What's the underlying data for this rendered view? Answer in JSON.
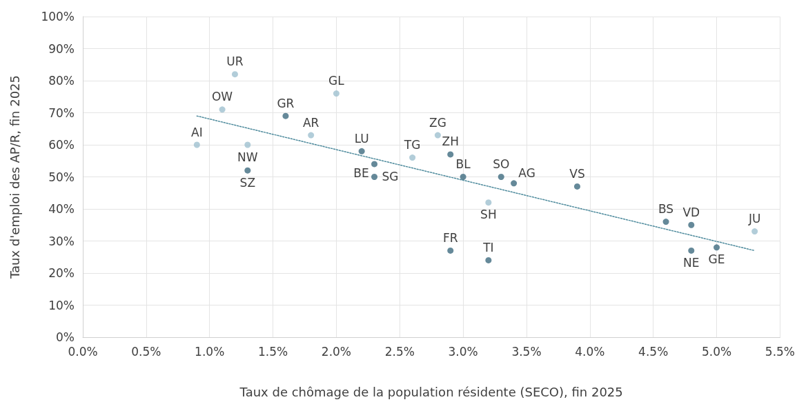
{
  "chart_data": {
    "type": "scatter",
    "xlabel": "Taux de chômage de la population résidente (SECO), fin 2025",
    "ylabel": "Taux d'emploi des AP/R, fin 2025",
    "xlim": [
      0,
      5.5
    ],
    "ylim": [
      0,
      100
    ],
    "xticks": [
      {
        "value": 0,
        "label": "0.0%"
      },
      {
        "value": 0.5,
        "label": "0.5%"
      },
      {
        "value": 1,
        "label": "1.0%"
      },
      {
        "value": 1.5,
        "label": "1.5%"
      },
      {
        "value": 2,
        "label": "2.0%"
      },
      {
        "value": 2.5,
        "label": "2.5%"
      },
      {
        "value": 3,
        "label": "3.0%"
      },
      {
        "value": 3.5,
        "label": "3.5%"
      },
      {
        "value": 4,
        "label": "4.0%"
      },
      {
        "value": 4.5,
        "label": "4.5%"
      },
      {
        "value": 5,
        "label": "5.0%"
      },
      {
        "value": 5.5,
        "label": "5.5%"
      }
    ],
    "yticks": [
      {
        "value": 0,
        "label": "0%"
      },
      {
        "value": 10,
        "label": "10%"
      },
      {
        "value": 20,
        "label": "20%"
      },
      {
        "value": 30,
        "label": "30%"
      },
      {
        "value": 40,
        "label": "40%"
      },
      {
        "value": 50,
        "label": "50%"
      },
      {
        "value": 60,
        "label": "60%"
      },
      {
        "value": 70,
        "label": "70%"
      },
      {
        "value": 80,
        "label": "80%"
      },
      {
        "value": 90,
        "label": "90%"
      },
      {
        "value": 100,
        "label": "100%"
      }
    ],
    "grid": true,
    "marker": "circle",
    "series": [
      {
        "x": [
          0.9,
          1.1,
          1.2,
          1.3,
          1.3,
          1.6,
          1.8,
          2.0,
          2.2,
          2.3,
          2.3,
          2.6,
          2.8,
          2.9,
          2.9,
          3.0,
          3.2,
          3.2,
          3.3,
          3.4,
          3.9,
          4.6,
          4.8,
          4.8,
          5.0,
          5.3
        ],
        "values": [
          60,
          71,
          82,
          60,
          52,
          69,
          63,
          76,
          58,
          54,
          50,
          56,
          63,
          57,
          27,
          50,
          42,
          24,
          50,
          48,
          47,
          36,
          35,
          27,
          28,
          33
        ],
        "colors": [
          "#9fc1cf",
          "#9fc1cf",
          "#9fc1cf",
          "#9fc1cf",
          "#3f6b80",
          "#3f6b80",
          "#9fc1cf",
          "#9fc1cf",
          "#3f6b80",
          "#3f6b80",
          "#3f6b80",
          "#9fc1cf",
          "#9fc1cf",
          "#3f6b80",
          "#3f6b80",
          "#3f6b80",
          "#9fc1cf",
          "#3f6b80",
          "#3f6b80",
          "#3f6b80",
          "#3f6b80",
          "#3f6b80",
          "#3f6b80",
          "#3f6b80",
          "#3f6b80",
          "#9fc1cf"
        ]
      },
      {
        "type": "line",
        "x": [
          0.9,
          5.3
        ],
        "values": [
          69,
          27
        ],
        "color": "#4d8a9c",
        "line_style": "dotted",
        "marker": "none"
      }
    ],
    "annotations": [
      {
        "text": "AI",
        "x": 0.9,
        "y": 60
      },
      {
        "text": "OW",
        "x": 1.1,
        "y": 71
      },
      {
        "text": "UR",
        "x": 1.2,
        "y": 82
      },
      {
        "text": "NW",
        "x": 1.3,
        "y": 60
      },
      {
        "text": "SZ",
        "x": 1.3,
        "y": 52
      },
      {
        "text": "GR",
        "x": 1.6,
        "y": 69
      },
      {
        "text": "AR",
        "x": 1.8,
        "y": 63
      },
      {
        "text": "GL",
        "x": 2.0,
        "y": 76
      },
      {
        "text": "LU",
        "x": 2.2,
        "y": 58
      },
      {
        "text": "BE",
        "x": 2.3,
        "y": 54
      },
      {
        "text": "SG",
        "x": 2.3,
        "y": 50
      },
      {
        "text": "TG",
        "x": 2.6,
        "y": 56
      },
      {
        "text": "ZG",
        "x": 2.8,
        "y": 63
      },
      {
        "text": "ZH",
        "x": 2.9,
        "y": 57
      },
      {
        "text": "FR",
        "x": 2.9,
        "y": 27
      },
      {
        "text": "BL",
        "x": 3.0,
        "y": 50
      },
      {
        "text": "SH",
        "x": 3.2,
        "y": 42
      },
      {
        "text": "TI",
        "x": 3.2,
        "y": 24
      },
      {
        "text": "SO",
        "x": 3.3,
        "y": 50
      },
      {
        "text": "AG",
        "x": 3.4,
        "y": 48
      },
      {
        "text": "VS",
        "x": 3.9,
        "y": 47
      },
      {
        "text": "BS",
        "x": 4.6,
        "y": 36
      },
      {
        "text": "VD",
        "x": 4.8,
        "y": 35
      },
      {
        "text": "NE",
        "x": 4.8,
        "y": 27
      },
      {
        "text": "GE",
        "x": 5.0,
        "y": 28
      },
      {
        "text": "JU",
        "x": 5.3,
        "y": 33
      }
    ]
  }
}
